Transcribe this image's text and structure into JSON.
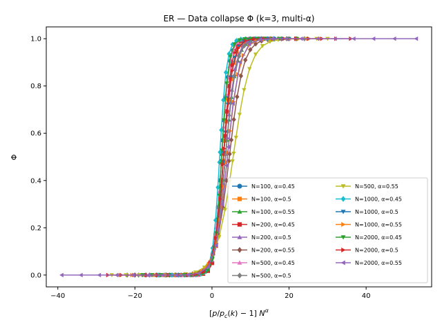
{
  "chart_data": {
    "type": "line",
    "title": "ER — Data collapse Φ (k=3, multi-α)",
    "xlabel": "[p/p_c(k) − 1] N^α",
    "ylabel": "Φ",
    "xlim": [
      -43,
      57
    ],
    "ylim": [
      -0.05,
      1.05
    ],
    "xticks": [
      -40,
      -20,
      0,
      20,
      40
    ],
    "yticks": [
      0.0,
      0.2,
      0.4,
      0.6,
      0.8,
      1.0
    ],
    "xtick_labels": [
      "−40",
      "−20",
      "0",
      "20",
      "40"
    ],
    "ytick_labels": [
      "0.0",
      "0.2",
      "0.4",
      "0.6",
      "0.8",
      "1.0"
    ],
    "grid": false,
    "legend_position": "lower-right",
    "legend_columns": 2,
    "series": [
      {
        "name": "N=100, α=0.45",
        "color": "#1f77b4",
        "marker": "circle",
        "center": 2.5,
        "width": 1.0,
        "xmin": -11,
        "xmax": 12
      },
      {
        "name": "N=100, α=0.5",
        "color": "#ff7f0e",
        "marker": "square",
        "center": 3.0,
        "width": 1.2,
        "xmin": -13,
        "xmax": 14
      },
      {
        "name": "N=100, α=0.55",
        "color": "#2ca02c",
        "marker": "triangle-up",
        "center": 3.5,
        "width": 1.4,
        "xmin": -15,
        "xmax": 17
      },
      {
        "name": "N=200, α=0.45",
        "color": "#d62728",
        "marker": "square",
        "center": 3.0,
        "width": 1.0,
        "xmin": -14,
        "xmax": 15
      },
      {
        "name": "N=200, α=0.5",
        "color": "#9467bd",
        "marker": "triangle-up",
        "center": 3.5,
        "width": 1.3,
        "xmin": -17,
        "xmax": 18
      },
      {
        "name": "N=200, α=0.55",
        "color": "#8c564b",
        "marker": "diamond",
        "center": 4.5,
        "width": 1.8,
        "xmin": -20,
        "xmax": 22
      },
      {
        "name": "N=500, α=0.45",
        "color": "#e377c2",
        "marker": "triangle-up",
        "center": 2.5,
        "width": 1.0,
        "xmin": -18,
        "xmax": 20
      },
      {
        "name": "N=500, α=0.5",
        "color": "#7f7f7f",
        "marker": "diamond",
        "center": 3.5,
        "width": 1.4,
        "xmin": -22,
        "xmax": 24
      },
      {
        "name": "N=500, α=0.55",
        "color": "#bcbd22",
        "marker": "triangle-down",
        "center": 5.5,
        "width": 2.2,
        "xmin": -26,
        "xmax": 30
      },
      {
        "name": "N=1000, α=0.45",
        "color": "#17becf",
        "marker": "diamond",
        "center": 2.0,
        "width": 0.9,
        "xmin": -14,
        "xmax": 16
      },
      {
        "name": "N=1000, α=0.5",
        "color": "#1f77b4",
        "marker": "triangle-down",
        "center": 3.0,
        "width": 1.2,
        "xmin": -18,
        "xmax": 20
      },
      {
        "name": "N=1000, α=0.55",
        "color": "#ff7f0e",
        "marker": "triangle-right",
        "center": 4.0,
        "width": 1.6,
        "xmin": -24,
        "xmax": 28
      },
      {
        "name": "N=2000, α=0.45",
        "color": "#2ca02c",
        "marker": "triangle-down",
        "center": 2.5,
        "width": 0.9,
        "xmin": -18,
        "xmax": 22
      },
      {
        "name": "N=2000, α=0.5",
        "color": "#d62728",
        "marker": "triangle-right",
        "center": 3.0,
        "width": 1.2,
        "xmin": -27,
        "xmax": 36
      },
      {
        "name": "N=2000, α=0.55",
        "color": "#9467bd",
        "marker": "triangle-left",
        "center": 4.0,
        "width": 1.5,
        "xmin": -39,
        "xmax": 53
      }
    ]
  }
}
